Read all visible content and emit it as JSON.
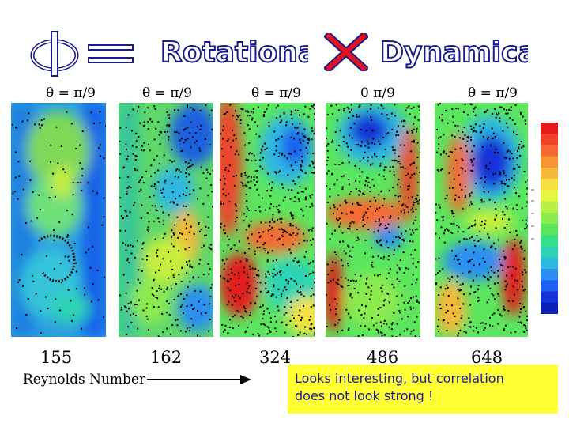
{
  "title": {
    "word_left": "Rotational",
    "word_right": "Dynamical"
  },
  "theta_labels": [
    "θ = π/9",
    "θ = π/9",
    "θ = π/9",
    "0   π/9",
    "θ = π/9"
  ],
  "reynolds": {
    "values": [
      "155",
      "162",
      "324",
      "486",
      "648"
    ],
    "label": "Reynolds Number"
  },
  "note": {
    "line1": "Looks interesting, but correlation",
    "line2": "does not look strong !"
  },
  "colors": {
    "note_bg": "#ffff33",
    "note_text": "#1a1a99",
    "title_fill": "#ffffff",
    "title_outline": "#1a1a8c",
    "times_red": "#e0141e"
  },
  "colorbar": [
    "#e41a1c",
    "#f0432a",
    "#f56a32",
    "#f79436",
    "#f8b83a",
    "#f5e242",
    "#e6f542",
    "#b8f047",
    "#8ceb4f",
    "#5be65e",
    "#36de85",
    "#2ed3b3",
    "#2fb8e0",
    "#2a8ff0",
    "#1f60f0",
    "#1433d9",
    "#0a1fb3"
  ]
}
